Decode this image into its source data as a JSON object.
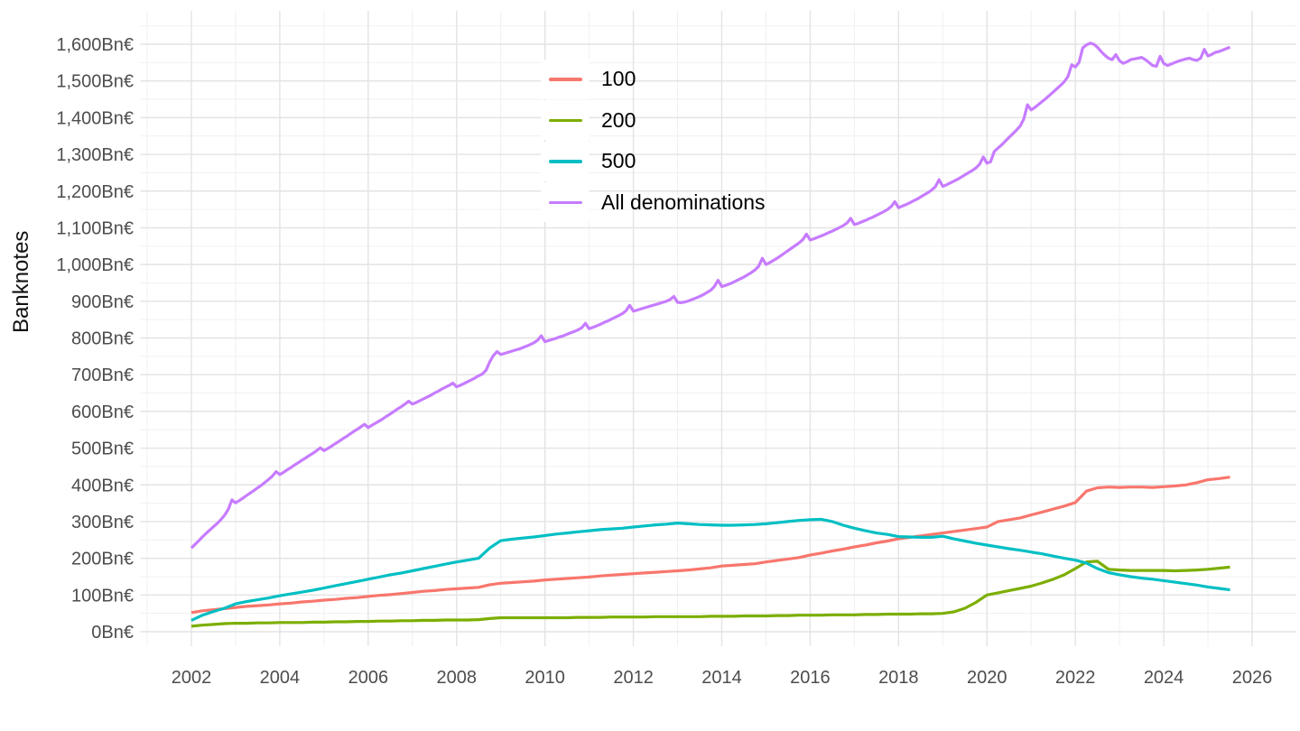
{
  "figure": {
    "background": "#ffffff",
    "grid_major_color": "#e3e3e3",
    "grid_minor_color": "#f0f0f0",
    "axis_text_color": "#4d4d4d"
  },
  "axes": {
    "y_title": "Banknotes",
    "y_tick_suffix": "Bn€"
  },
  "chart_data": {
    "type": "line",
    "title": "",
    "xlabel": "",
    "ylabel": "Banknotes",
    "grid": true,
    "legend_position": "inside-top-center-left",
    "x_ticks": [
      2002,
      2004,
      2006,
      2008,
      2010,
      2012,
      2014,
      2016,
      2018,
      2020,
      2022,
      2024,
      2026
    ],
    "y_ticks": [
      0,
      100,
      200,
      300,
      400,
      500,
      600,
      700,
      800,
      900,
      1000,
      1100,
      1200,
      1300,
      1400,
      1500,
      1600
    ],
    "xlim": [
      2000.8,
      2027.0
    ],
    "ylim": [
      -40,
      1690
    ],
    "unit": "billion euro",
    "series": [
      {
        "name": "100",
        "color": "#F8766D",
        "x_start": 2002.0,
        "x_step": 0.25,
        "values": [
          52,
          57,
          60,
          63,
          66,
          69,
          71,
          73,
          76,
          78,
          81,
          83,
          86,
          88,
          91,
          93,
          96,
          99,
          101,
          104,
          107,
          110,
          112,
          115,
          117,
          119,
          121,
          128,
          132,
          134,
          136,
          138,
          141,
          143,
          145,
          147,
          149,
          152,
          154,
          156,
          158,
          160,
          162,
          164,
          166,
          168,
          171,
          174,
          179,
          181,
          183,
          185,
          190,
          194,
          198,
          202,
          209,
          214,
          220,
          225,
          231,
          236,
          242,
          247,
          253,
          257,
          261,
          265,
          269,
          273,
          277,
          281,
          285,
          300,
          305,
          310,
          318,
          326,
          334,
          342,
          352,
          383,
          392,
          394,
          393,
          394,
          394,
          393,
          395,
          397,
          400,
          406,
          414,
          417,
          421
        ]
      },
      {
        "name": "200",
        "color": "#7CAE00",
        "x_start": 2002.0,
        "x_step": 0.25,
        "values": [
          15,
          18,
          20,
          22,
          23,
          23,
          24,
          24,
          25,
          25,
          25,
          26,
          26,
          27,
          27,
          28,
          28,
          29,
          29,
          30,
          30,
          31,
          31,
          32,
          32,
          32,
          33,
          36,
          38,
          38,
          38,
          38,
          38,
          38,
          38,
          39,
          39,
          39,
          40,
          40,
          40,
          40,
          41,
          41,
          41,
          41,
          41,
          42,
          42,
          42,
          43,
          43,
          43,
          44,
          44,
          45,
          45,
          45,
          46,
          46,
          46,
          47,
          47,
          48,
          48,
          48,
          49,
          49,
          50,
          54,
          64,
          80,
          100,
          106,
          112,
          118,
          124,
          133,
          143,
          155,
          172,
          190,
          192,
          170,
          168,
          167,
          167,
          167,
          167,
          166,
          167,
          168,
          170,
          173,
          176
        ]
      },
      {
        "name": "500",
        "color": "#00BFC4",
        "x_start": 2002.0,
        "x_step": 0.25,
        "values": [
          31,
          45,
          55,
          64,
          76,
          82,
          87,
          92,
          98,
          103,
          108,
          113,
          119,
          125,
          131,
          137,
          143,
          149,
          155,
          160,
          166,
          172,
          178,
          184,
          190,
          195,
          200,
          228,
          248,
          252,
          255,
          258,
          262,
          266,
          269,
          272,
          275,
          278,
          280,
          282,
          285,
          288,
          291,
          293,
          296,
          294,
          292,
          291,
          290,
          290,
          291,
          292,
          294,
          297,
          300,
          303,
          305,
          306,
          300,
          290,
          282,
          275,
          269,
          265,
          259,
          258,
          257,
          257,
          260,
          253,
          247,
          241,
          236,
          231,
          226,
          222,
          217,
          212,
          206,
          200,
          195,
          187,
          172,
          161,
          155,
          150,
          146,
          143,
          139,
          135,
          131,
          127,
          122,
          118,
          114
        ]
      },
      {
        "name": "All denominations",
        "color": "#C77CFF",
        "x_start": 2002.0,
        "x_step": 0.0833333,
        "values": [
          228,
          238,
          248,
          258,
          268,
          277,
          286,
          295,
          305,
          317,
          333,
          359,
          351,
          357,
          364,
          371,
          378,
          385,
          392,
          399,
          407,
          415,
          424,
          436,
          428,
          434,
          441,
          447,
          454,
          460,
          467,
          473,
          480,
          486,
          493,
          501,
          493,
          499,
          505,
          512,
          518,
          525,
          531,
          538,
          545,
          551,
          558,
          565,
          556,
          562,
          568,
          574,
          580,
          587,
          593,
          600,
          607,
          613,
          620,
          628,
          620,
          624,
          629,
          634,
          639,
          644,
          650,
          655,
          661,
          666,
          671,
          677,
          667,
          671,
          676,
          681,
          686,
          691,
          697,
          702,
          712,
          735,
          752,
          763,
          755,
          758,
          761,
          764,
          767,
          770,
          774,
          778,
          782,
          787,
          794,
          806,
          790,
          793,
          796,
          799,
          803,
          806,
          810,
          814,
          818,
          822,
          828,
          840,
          825,
          829,
          833,
          837,
          842,
          846,
          851,
          856,
          861,
          866,
          874,
          889,
          873,
          876,
          879,
          882,
          885,
          888,
          891,
          894,
          897,
          900,
          905,
          913,
          897,
          896,
          898,
          901,
          905,
          909,
          913,
          918,
          924,
          930,
          940,
          957,
          940,
          943,
          947,
          951,
          956,
          961,
          966,
          972,
          978,
          985,
          995,
          1017,
          1000,
          1005,
          1011,
          1017,
          1024,
          1031,
          1038,
          1045,
          1052,
          1059,
          1068,
          1083,
          1067,
          1070,
          1074,
          1078,
          1082,
          1087,
          1091,
          1096,
          1101,
          1106,
          1113,
          1126,
          1109,
          1112,
          1116,
          1120,
          1125,
          1129,
          1134,
          1139,
          1144,
          1150,
          1158,
          1171,
          1155,
          1159,
          1163,
          1168,
          1173,
          1178,
          1184,
          1190,
          1196,
          1203,
          1212,
          1231,
          1213,
          1217,
          1222,
          1227,
          1232,
          1238,
          1244,
          1250,
          1256,
          1263,
          1273,
          1293,
          1276,
          1280,
          1308,
          1317,
          1326,
          1336,
          1346,
          1356,
          1366,
          1377,
          1396,
          1435,
          1421,
          1428,
          1436,
          1444,
          1452,
          1461,
          1470,
          1479,
          1488,
          1498,
          1512,
          1544,
          1538,
          1550,
          1590,
          1598,
          1603,
          1600,
          1592,
          1580,
          1570,
          1562,
          1558,
          1572,
          1555,
          1548,
          1552,
          1558,
          1560,
          1562,
          1564,
          1558,
          1550,
          1542,
          1540,
          1567,
          1548,
          1542,
          1546,
          1550,
          1554,
          1557,
          1560,
          1562,
          1558,
          1556,
          1562,
          1586,
          1568,
          1572,
          1578,
          1580,
          1584,
          1588,
          1592
        ]
      }
    ]
  }
}
